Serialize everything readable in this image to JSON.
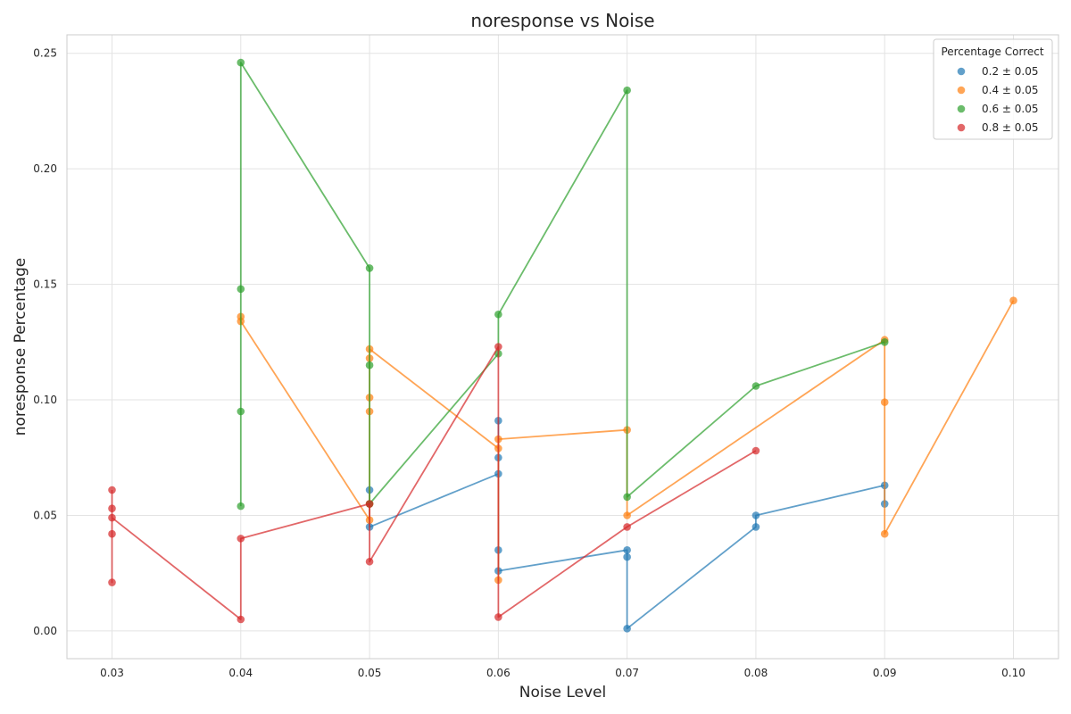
{
  "chart_data": {
    "type": "line",
    "title": "noresponse vs Noise",
    "xlabel": "Noise Level",
    "ylabel": "noresponse Percentage",
    "xlim": [
      0.0265,
      0.1035
    ],
    "ylim": [
      -0.012,
      0.258
    ],
    "xticks": [
      "0.03",
      "0.04",
      "0.05",
      "0.06",
      "0.07",
      "0.08",
      "0.09",
      "0.10"
    ],
    "yticks": [
      "0.00",
      "0.05",
      "0.10",
      "0.15",
      "0.20",
      "0.25"
    ],
    "grid": true,
    "legend_title": "Percentage Correct",
    "legend_position": "top-right",
    "series": [
      {
        "name": "0.2 ± 0.05",
        "color": "#1f77b4",
        "points": [
          [
            0.05,
            0.061
          ],
          [
            0.05,
            0.045
          ],
          [
            0.06,
            0.068
          ],
          [
            0.06,
            0.091
          ],
          [
            0.06,
            0.075
          ],
          [
            0.06,
            0.035
          ],
          [
            0.06,
            0.026
          ],
          [
            0.07,
            0.035
          ],
          [
            0.07,
            0.032
          ],
          [
            0.07,
            0.001
          ],
          [
            0.08,
            0.045
          ],
          [
            0.08,
            0.05
          ],
          [
            0.09,
            0.063
          ],
          [
            0.09,
            0.055
          ]
        ]
      },
      {
        "name": "0.4 ± 0.05",
        "color": "#ff7f0e",
        "points": [
          [
            0.04,
            0.136
          ],
          [
            0.04,
            0.134
          ],
          [
            0.05,
            0.048
          ],
          [
            0.05,
            0.055
          ],
          [
            0.05,
            0.095
          ],
          [
            0.05,
            0.101
          ],
          [
            0.05,
            0.118
          ],
          [
            0.05,
            0.122
          ],
          [
            0.06,
            0.079
          ],
          [
            0.06,
            0.022
          ],
          [
            0.06,
            0.083
          ],
          [
            0.07,
            0.087
          ],
          [
            0.07,
            0.05
          ],
          [
            0.09,
            0.126
          ],
          [
            0.09,
            0.099
          ],
          [
            0.09,
            0.042
          ],
          [
            0.1,
            0.143
          ]
        ]
      },
      {
        "name": "0.6 ± 0.05",
        "color": "#2ca02c",
        "points": [
          [
            0.04,
            0.054
          ],
          [
            0.04,
            0.095
          ],
          [
            0.04,
            0.148
          ],
          [
            0.04,
            0.246
          ],
          [
            0.05,
            0.157
          ],
          [
            0.05,
            0.115
          ],
          [
            0.05,
            0.055
          ],
          [
            0.06,
            0.12
          ],
          [
            0.06,
            0.137
          ],
          [
            0.07,
            0.234
          ],
          [
            0.07,
            0.058
          ],
          [
            0.08,
            0.106
          ],
          [
            0.09,
            0.125
          ]
        ]
      },
      {
        "name": "0.8 ± 0.05",
        "color": "#d62728",
        "points": [
          [
            0.03,
            0.061
          ],
          [
            0.03,
            0.053
          ],
          [
            0.03,
            0.042
          ],
          [
            0.03,
            0.021
          ],
          [
            0.03,
            0.049
          ],
          [
            0.04,
            0.005
          ],
          [
            0.04,
            0.04
          ],
          [
            0.05,
            0.055
          ],
          [
            0.05,
            0.03
          ],
          [
            0.06,
            0.123
          ],
          [
            0.06,
            0.006
          ],
          [
            0.07,
            0.045
          ],
          [
            0.08,
            0.078
          ]
        ]
      }
    ]
  }
}
